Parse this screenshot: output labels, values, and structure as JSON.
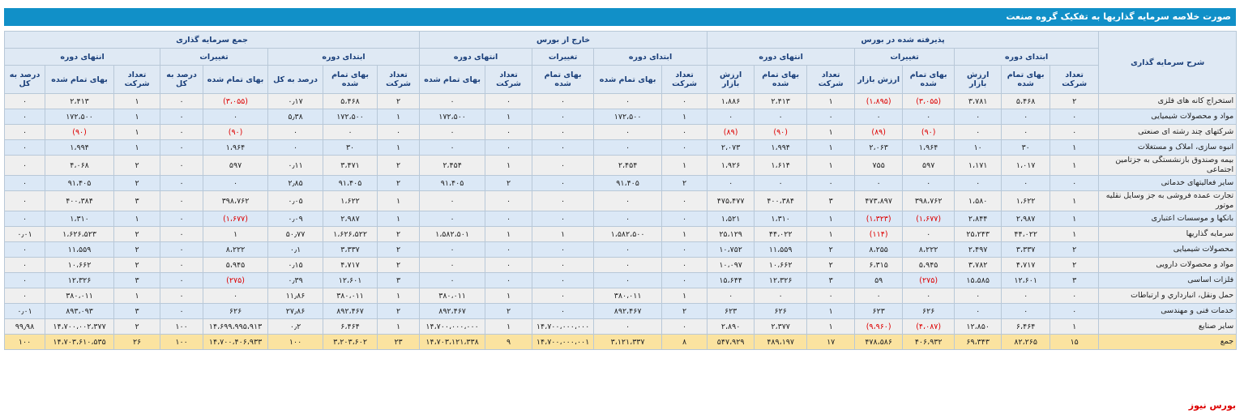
{
  "header": {
    "title": "صورت خلاصه سرمایه گذاریها به تفکیک گروه صنعت"
  },
  "table": {
    "groups": [
      "پذیرفته شده در بورس",
      "خارج از بورس",
      "جمع سرمایه گذاری"
    ],
    "subgroups": [
      "ابتدای دوره",
      "تغییرات",
      "انتهای دوره",
      "ابتدای دوره",
      "تغییرات",
      "انتهای دوره",
      "ابتدای دوره",
      "تغییرات",
      "انتهای دوره"
    ],
    "columns": [
      "شرح سرمایه گذاری",
      "تعداد شرکت",
      "بهای تمام شده",
      "ارزش بازار",
      "بهای تمام شده",
      "ارزش بازار",
      "تعداد شرکت",
      "بهای تمام شده",
      "ارزش بازار",
      "تعداد شرکت",
      "بهای تمام شده",
      "بهای تمام شده",
      "تعداد شرکت",
      "بهای تمام شده",
      "تعداد شرکت",
      "بهای تمام شده",
      "درصد به کل",
      "بهای تمام شده",
      "درصد به کل",
      "تعداد شرکت",
      "بهای تمام شده",
      "درصد به کل"
    ],
    "rows": [
      [
        "استخراج کانه های فلزی",
        "۲",
        "۵،۴۶۸",
        "۳،۷۸۱",
        "(۳،۰۵۵)",
        "(۱،۸۹۵)",
        "۱",
        "۲،۴۱۳",
        "۱،۸۸۶",
        "۰",
        "۰",
        "۰",
        "۰",
        "۰",
        "۲",
        "۵،۴۶۸",
        "۰٫۱۷",
        "(۳،۰۵۵)",
        "۰",
        "۱",
        "۲،۴۱۳",
        "۰"
      ],
      [
        "مواد و محصولات شیمیایی",
        "۰",
        "۰",
        "۰",
        "۰",
        "۰",
        "۰",
        "۰",
        "۰",
        "۱",
        "۱۷۲،۵۰۰",
        "۰",
        "۱",
        "۱۷۲،۵۰۰",
        "۱",
        "۱۷۲،۵۰۰",
        "۵٫۳۸",
        "۰",
        "۰",
        "۱",
        "۱۷۲،۵۰۰",
        "۰"
      ],
      [
        "شرکتهای چند رشته ای صنعتی",
        "۰",
        "۰",
        "۰",
        "(۹۰)",
        "(۸۹)",
        "۱",
        "(۹۰)",
        "(۸۹)",
        "۰",
        "۰",
        "۰",
        "۰",
        "۰",
        "۰",
        "۰",
        "۰",
        "(۹۰)",
        "۰",
        "۱",
        "(۹۰)",
        "۰"
      ],
      [
        "انبوه سازی، املاک و مستغلات",
        "۱",
        "۳۰",
        "۱۰",
        "۱،۹۶۴",
        "۲،۰۶۳",
        "۱",
        "۱،۹۹۴",
        "۲،۰۷۳",
        "۰",
        "۰",
        "۰",
        "۰",
        "۰",
        "۱",
        "۳۰",
        "۰",
        "۱،۹۶۴",
        "۰",
        "۱",
        "۱،۹۹۴",
        "۰"
      ],
      [
        "بیمه وصندوق بازنشستگی به جزتامین اجتماعی",
        "۱",
        "۱،۰۱۷",
        "۱،۱۷۱",
        "۵۹۷",
        "۷۵۵",
        "۱",
        "۱،۶۱۴",
        "۱،۹۲۶",
        "۱",
        "۲،۴۵۴",
        "۰",
        "۱",
        "۲،۴۵۴",
        "۲",
        "۳،۴۷۱",
        "۰٫۱۱",
        "۵۹۷",
        "۰",
        "۲",
        "۴،۰۶۸",
        "۰"
      ],
      [
        "سایر فعالیتهای خدماتی",
        "۰",
        "۰",
        "۰",
        "۰",
        "۰",
        "۰",
        "۰",
        "۰",
        "۲",
        "۹۱،۴۰۵",
        "۰",
        "۲",
        "۹۱،۴۰۵",
        "۲",
        "۹۱،۴۰۵",
        "۲٫۸۵",
        "۰",
        "۰",
        "۲",
        "۹۱،۴۰۵",
        "۰"
      ],
      [
        "تجارت عمده فروشی به جز وسایل نقلیه موتور",
        "۱",
        "۱،۶۲۲",
        "۱،۵۸۰",
        "۳۹۸،۷۶۲",
        "۴۷۳،۸۹۷",
        "۳",
        "۴۰۰،۳۸۴",
        "۴۷۵،۴۷۷",
        "۰",
        "۰",
        "۰",
        "۰",
        "۰",
        "۱",
        "۱،۶۲۲",
        "۰٫۰۵",
        "۳۹۸،۷۶۲",
        "۰",
        "۳",
        "۴۰۰،۳۸۴",
        "۰"
      ],
      [
        "بانکها و موسسات اعتباری",
        "۱",
        "۲،۹۸۷",
        "۲،۸۴۴",
        "(۱،۶۷۷)",
        "(۱،۳۲۳)",
        "۱",
        "۱،۳۱۰",
        "۱،۵۲۱",
        "۰",
        "۰",
        "۰",
        "۰",
        "۰",
        "۱",
        "۲،۹۸۷",
        "۰٫۰۹",
        "(۱،۶۷۷)",
        "۰",
        "۱",
        "۱،۳۱۰",
        "۰"
      ],
      [
        "سرمایه گذاریها",
        "۱",
        "۴۴،۰۲۲",
        "۲۵،۲۴۳",
        "۰",
        "(۱۱۴)",
        "۱",
        "۴۴،۰۲۲",
        "۲۵،۱۲۹",
        "۱",
        "۱،۵۸۲،۵۰۰",
        "۱",
        "۱",
        "۱،۵۸۲،۵۰۱",
        "۲",
        "۱،۶۲۶،۵۲۲",
        "۵۰٫۷۷",
        "۱",
        "۰",
        "۲",
        "۱،۶۲۶،۵۲۳",
        "۰٫۰۱"
      ],
      [
        "محصولات شیمیایی",
        "۲",
        "۳،۳۳۷",
        "۲،۴۹۷",
        "۸،۲۲۲",
        "۸،۲۵۵",
        "۲",
        "۱۱،۵۵۹",
        "۱۰،۷۵۲",
        "۰",
        "۰",
        "۰",
        "۰",
        "۰",
        "۲",
        "۳،۳۳۷",
        "۰٫۱",
        "۸،۲۲۲",
        "۰",
        "۲",
        "۱۱،۵۵۹",
        "۰"
      ],
      [
        "مواد و محصولات دارویی",
        "۲",
        "۴،۷۱۷",
        "۳،۷۸۲",
        "۵،۹۴۵",
        "۶،۳۱۵",
        "۲",
        "۱۰،۶۶۲",
        "۱۰،۰۹۷",
        "۰",
        "۰",
        "۰",
        "۰",
        "۰",
        "۲",
        "۴،۷۱۷",
        "۰٫۱۵",
        "۵،۹۴۵",
        "۰",
        "۲",
        "۱۰،۶۶۲",
        "۰"
      ],
      [
        "فلزات اساسی",
        "۳",
        "۱۲،۶۰۱",
        "۱۵،۵۸۵",
        "(۲۷۵)",
        "۵۹",
        "۳",
        "۱۲،۳۲۶",
        "۱۵،۶۴۴",
        "۰",
        "۰",
        "۰",
        "۰",
        "۰",
        "۳",
        "۱۲،۶۰۱",
        "۰٫۳۹",
        "(۲۷۵)",
        "۰",
        "۳",
        "۱۲،۳۲۶",
        "۰"
      ],
      [
        "حمل ونقل، انبارداري و ارتباطات",
        "۰",
        "۰",
        "۰",
        "۰",
        "۰",
        "۰",
        "۰",
        "۰",
        "۱",
        "۳۸۰،۰۱۱",
        "۰",
        "۱",
        "۳۸۰،۰۱۱",
        "۱",
        "۳۸۰،۰۱۱",
        "۱۱٫۸۶",
        "۰",
        "۰",
        "۱",
        "۳۸۰،۰۱۱",
        "۰"
      ],
      [
        "خدمات فنی و مهندسی",
        "۰",
        "۰",
        "۰",
        "۶۲۶",
        "۶۲۳",
        "۱",
        "۶۲۶",
        "۶۲۳",
        "۲",
        "۸۹۲،۴۶۷",
        "۰",
        "۲",
        "۸۹۲،۴۶۷",
        "۲",
        "۸۹۲،۴۶۷",
        "۲۷٫۸۶",
        "۶۲۶",
        "۰",
        "۳",
        "۸۹۳،۰۹۳",
        "۰٫۰۱"
      ],
      [
        "سایر صنایع",
        "۱",
        "۶،۴۶۴",
        "۱۲،۸۵۰",
        "(۴،۰۸۷)",
        "(۹،۹۶۰)",
        "۱",
        "۲،۳۷۷",
        "۲،۸۹۰",
        "۰",
        "۰",
        "۱۴،۷۰۰،۰۰۰،۰۰۰",
        "۱",
        "۱۴،۷۰۰،۰۰۰،۰۰۰",
        "۱",
        "۶،۴۶۴",
        "۰٫۲",
        "۱۴،۶۹۹،۹۹۵،۹۱۳",
        "۱۰۰",
        "۲",
        "۱۴،۷۰۰،۰۰۲،۳۷۷",
        "۹۹٫۹۸"
      ]
    ],
    "total": [
      "جمع",
      "۱۵",
      "۸۲،۲۶۵",
      "۶۹،۳۴۳",
      "۴۰۶،۹۳۲",
      "۴۷۸،۵۸۶",
      "۱۷",
      "۴۸۹،۱۹۷",
      "۵۴۷،۹۲۹",
      "۸",
      "۳،۱۲۱،۳۳۷",
      "۱۴،۷۰۰،۰۰۰،۰۰۱",
      "۹",
      "۱۴،۷۰۳،۱۲۱،۳۳۸",
      "۲۳",
      "۳،۲۰۳،۶۰۲",
      "۱۰۰",
      "۱۴،۷۰۰،۴۰۶،۹۳۳",
      "۱۰۰",
      "۲۶",
      "۱۴،۷۰۳،۶۱۰،۵۳۵",
      "۱۰۰"
    ]
  },
  "footer": {
    "source": "بورس نیوز"
  }
}
